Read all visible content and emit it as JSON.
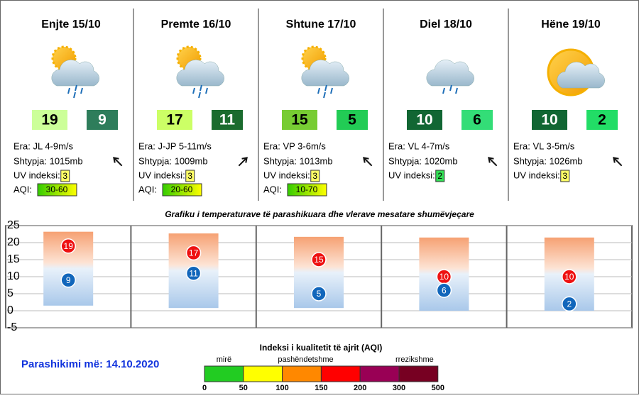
{
  "days": [
    {
      "title": "Enjte 15/10",
      "wind": "Era: JL 4-9m/s",
      "pressure": "Shtypja: 1015mb",
      "uv_label": "UV indeksi:",
      "uv": 3,
      "aqi_label": "AQI:",
      "aqi": "30-60",
      "max_color": "#ccff99",
      "min_color": "#2e7d5b"
    },
    {
      "title": "Premte 16/10",
      "wind": "Era: J-JP 5-11m/s",
      "pressure": "Shtypja: 1009mb",
      "uv_label": "UV indeksi:",
      "uv": 3,
      "aqi_label": "AQI:",
      "aqi": "20-60",
      "max_color": "#ccff66",
      "min_color": "#1a6b2e"
    },
    {
      "title": "Shtune 17/10",
      "wind": "Era: VP 3-6m/s",
      "pressure": "Shtypja: 1013mb",
      "uv_label": "UV indeksi:",
      "uv": 3,
      "aqi_label": "AQI:",
      "aqi": "10-70",
      "max_color": "#77cc33",
      "min_color": "#22cc55"
    },
    {
      "title": "Diel 18/10",
      "wind": "Era: VL 4-7m/s",
      "pressure": "Shtypja: 1020mb",
      "uv_label": "UV indeksi:",
      "uv": 2,
      "max_color": "#116633",
      "min_color": "#33dd77"
    },
    {
      "title": "Hëne 19/10",
      "wind": "Era: VL 3-5m/s",
      "pressure": "Shtypja: 1026mb",
      "uv_label": "UV indeksi:",
      "uv": 3,
      "max_color": "#116633",
      "min_color": "#22dd66"
    }
  ],
  "chart_data": {
    "type": "range-bar",
    "title": "Grafiku i temperaturave të parashikuara dhe vlerave mesatare shumëvjeçare",
    "max_values": [
      19,
      17,
      15,
      10,
      10
    ],
    "min_values": [
      9,
      11,
      5,
      6,
      2
    ],
    "avg_max": [
      23.2,
      22.7,
      21.7,
      21.5,
      21.5
    ],
    "avg_min": [
      1.5,
      0.8,
      0.8,
      0,
      0
    ],
    "max_color": "#ee1111",
    "min_color": "#1166bb",
    "ylim": [
      -5,
      25
    ],
    "yticks": [
      -5,
      0,
      5,
      10,
      15,
      20,
      25
    ],
    "grid": true
  },
  "aqi_legend": {
    "title": "Indeksi i kualitetit të ajrit (AQI)",
    "labels": [
      "mirë",
      "pashëndetshme",
      "rrezikshme"
    ],
    "ticks": [
      0,
      50,
      100,
      150,
      200,
      300,
      500
    ],
    "colors": [
      "#22cc22",
      "#ffff00",
      "#ff8800",
      "#ff0000",
      "#990055",
      "#770022"
    ]
  },
  "footer": "Parashikimi më: 14.10.2020"
}
